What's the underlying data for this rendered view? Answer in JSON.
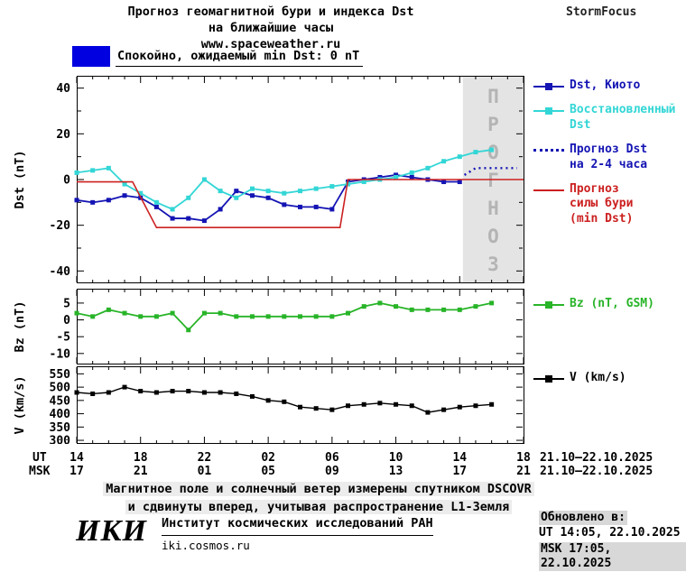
{
  "header": {
    "title_line1": "Прогноз геомагнитной бури и индекса Dst",
    "title_line2": "на ближайшие часы",
    "website": "www.spaceweather.ru",
    "brand": "StormFocus"
  },
  "status": {
    "label": "Спокойно, ожидаемый min Dst: 0 nT",
    "box_color": "#0000e0"
  },
  "colors": {
    "kyoto": "#1414b4",
    "restored": "#33d6d6",
    "forecast_dst": "#1414b4",
    "storm_forecast": "#cc2020",
    "bz": "#28b428",
    "v": "#000000",
    "band_fill": "#e4e4e4",
    "band_text": "#b4b4b4"
  },
  "dst_legend": [
    {
      "label": "Dst, Киото",
      "color": "#1414b4",
      "marker": "line-square"
    },
    {
      "label": "Восстановленный\nDst",
      "color": "#33d6d6",
      "marker": "line-square"
    },
    {
      "label": "Прогноз Dst\nна 2-4 часа",
      "color": "#1414b4",
      "marker": "dotted"
    },
    {
      "label": "Прогноз\nсилы бури\n(min Dst)",
      "color": "#cc2020",
      "marker": "line"
    }
  ],
  "bz_legend": {
    "label": "Bz (nT, GSM)",
    "color": "#28b428",
    "marker": "line-square"
  },
  "v_legend": {
    "label": "V (km/s)",
    "color": "#000000",
    "marker": "line-square"
  },
  "chart_data": [
    {
      "type": "line",
      "panel": "dst",
      "title": "Dst index: measured, restored and forecast",
      "ylabel": "Dst (nT)",
      "ylim": [
        -45,
        45
      ],
      "yticks": [
        40,
        20,
        0,
        -20,
        -40
      ],
      "xlim_hours": [
        14,
        42
      ],
      "x_note": "hours UT, 21.10.2025 14:00 - 22.10.2025 18:00",
      "forecast_band": {
        "from": 38.2,
        "to": 42,
        "label": "ПРОГНОЗ"
      },
      "series": [
        {
          "name": "Dst, Киото",
          "color": "#1414b4",
          "marker": true,
          "width": 1.8,
          "x": [
            14,
            15,
            16,
            17,
            18,
            19,
            20,
            21,
            22,
            23,
            24,
            25,
            26,
            27,
            28,
            29,
            30,
            31,
            32,
            33,
            34,
            35,
            36,
            37,
            38
          ],
          "values": [
            -9,
            -10,
            -9,
            -7,
            -8,
            -12,
            -17,
            -17,
            -18,
            -13,
            -5,
            -7,
            -8,
            -11,
            -12,
            -12,
            -13,
            -1,
            0,
            1,
            2,
            1,
            0,
            -1,
            -1
          ]
        },
        {
          "name": "Восстановленный Dst",
          "color": "#33d6d6",
          "marker": true,
          "width": 1.8,
          "x": [
            14,
            15,
            16,
            17,
            18,
            19,
            20,
            21,
            22,
            23,
            24,
            25,
            26,
            27,
            28,
            29,
            30,
            31,
            32,
            33,
            34,
            35,
            36,
            37,
            38,
            39,
            40
          ],
          "values": [
            3,
            4,
            5,
            -2,
            -6,
            -10,
            -13,
            -8,
            0,
            -5,
            -8,
            -4,
            -5,
            -6,
            -5,
            -4,
            -3,
            -2,
            -1,
            0,
            1,
            3,
            5,
            8,
            10,
            12,
            13
          ]
        },
        {
          "name": "Прогноз Dst на 2-4 часа",
          "color": "#1414b4",
          "dash": "dot",
          "width": 2.4,
          "x": [
            38.3,
            39,
            40,
            41,
            41.6
          ],
          "values": [
            2,
            5,
            5,
            5,
            5
          ]
        },
        {
          "name": "Прогноз силы бури (min Dst)",
          "color": "#cc2020",
          "width": 1.6,
          "x": [
            14,
            17.5,
            19,
            30.5,
            31,
            42
          ],
          "values": [
            -1,
            -1,
            -21,
            -21,
            0,
            0
          ]
        }
      ]
    },
    {
      "type": "line",
      "panel": "bz",
      "title": "Bz component of IMF (DSCOVR)",
      "ylabel": "Bz (nT)",
      "ylim": [
        -13,
        9
      ],
      "yticks": [
        5,
        0,
        -5,
        -10
      ],
      "xlim_hours": [
        14,
        42
      ],
      "series": [
        {
          "name": "Bz (nT, GSM)",
          "color": "#28b428",
          "marker": true,
          "width": 1.8,
          "x": [
            14,
            15,
            16,
            17,
            18,
            19,
            20,
            21,
            22,
            23,
            24,
            25,
            26,
            27,
            28,
            29,
            30,
            31,
            32,
            33,
            34,
            35,
            36,
            37,
            38,
            39,
            40
          ],
          "values": [
            2,
            1,
            3,
            2,
            1,
            1,
            2,
            -3,
            2,
            2,
            1,
            1,
            1,
            1,
            1,
            1,
            1,
            2,
            4,
            5,
            4,
            3,
            3,
            3,
            3,
            4,
            5
          ]
        }
      ]
    },
    {
      "type": "line",
      "panel": "v",
      "title": "Solar wind speed (DSCOVR)",
      "ylabel": "V (km/s)",
      "ylim": [
        290,
        575
      ],
      "yticks": [
        550,
        500,
        450,
        400,
        350,
        300
      ],
      "xlim_hours": [
        14,
        42
      ],
      "series": [
        {
          "name": "V (km/s)",
          "color": "#000000",
          "marker": true,
          "width": 1.4,
          "x": [
            14,
            15,
            16,
            17,
            18,
            19,
            20,
            21,
            22,
            23,
            24,
            25,
            26,
            27,
            28,
            29,
            30,
            31,
            32,
            33,
            34,
            35,
            36,
            37,
            38,
            39,
            40
          ],
          "values": [
            480,
            475,
            480,
            500,
            485,
            480,
            485,
            485,
            480,
            480,
            475,
            465,
            450,
            445,
            425,
            420,
            415,
            430,
            435,
            440,
            435,
            430,
            405,
            415,
            425,
            430,
            435
          ]
        }
      ]
    }
  ],
  "xaxis": {
    "ut_label": "UT",
    "msk_label": "MSK",
    "tick_hours": [
      14,
      18,
      22,
      26,
      30,
      34,
      38,
      42
    ],
    "ut_ticks": [
      "14",
      "18",
      "22",
      "02",
      "06",
      "10",
      "14",
      "18"
    ],
    "msk_ticks": [
      "17",
      "21",
      "01",
      "05",
      "09",
      "13",
      "17",
      "21"
    ],
    "ut_date_range": "21.10–22.10.2025",
    "msk_date_range": "21.10–22.10.2025"
  },
  "footnote": {
    "line1": "Магнитное поле и солнечный ветер измерены спутником DSCOVR",
    "line2": "и сдвинуты вперед, учитывая распространение L1-Земля"
  },
  "institute": {
    "logo": "ИКИ",
    "name": "Институт космических исследований РАН",
    "site": "iki.cosmos.ru"
  },
  "updated": {
    "title": "Обновлено в:",
    "ut": "UT  14:05, 22.10.2025",
    "msk": "MSK 17:05, 22.10.2025"
  }
}
